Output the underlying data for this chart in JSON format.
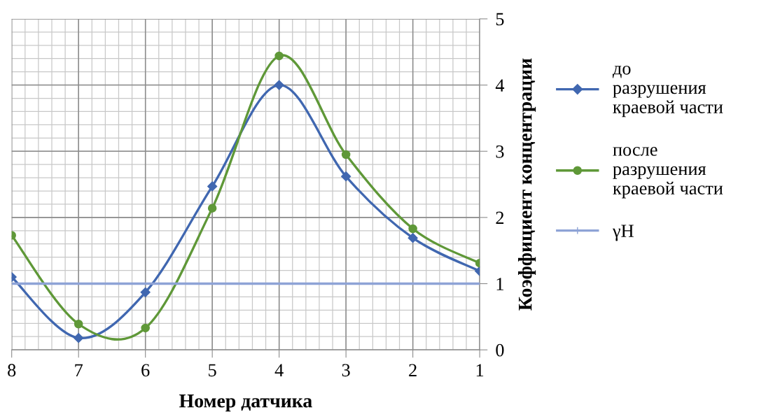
{
  "chart_data": {
    "type": "line",
    "xlabel": "Номер датчика",
    "ylabel": "Коэффициент концентрации",
    "categories": [
      "8",
      "7",
      "6",
      "5",
      "4",
      "3",
      "2",
      "1"
    ],
    "series": [
      {
        "name": "до\nразрушения\nкраевой части",
        "color": "#4067b0",
        "marker": "diamond",
        "values": [
          1.1,
          0.18,
          0.87,
          2.47,
          4.0,
          2.62,
          1.69,
          1.19
        ]
      },
      {
        "name": "после\nразрушения\nкраевой части",
        "color": "#5f9838",
        "marker": "circle",
        "values": [
          1.73,
          0.39,
          0.33,
          2.14,
          4.44,
          2.95,
          1.83,
          1.31
        ]
      },
      {
        "name": "γН",
        "color": "#8ea3d6",
        "marker": "none",
        "values": [
          1,
          1,
          1,
          1,
          1,
          1,
          1,
          1
        ]
      }
    ],
    "ylim": [
      0,
      5
    ],
    "yticks": [
      0,
      1,
      2,
      3,
      4,
      5
    ],
    "grid": true,
    "legend": "right"
  }
}
